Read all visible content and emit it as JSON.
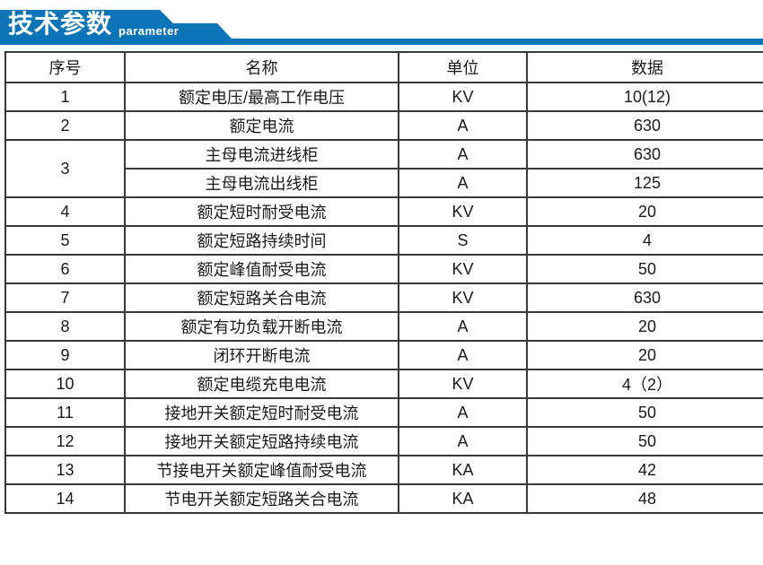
{
  "colors": {
    "banner-blue": "#0e74b8",
    "border-dark": "#3a3a3a"
  },
  "banner": {
    "title": "技术参数",
    "subtitle": "parameter"
  },
  "table": {
    "columns": [
      "序号",
      "名称",
      "单位",
      "数据"
    ],
    "rows": [
      {
        "no": "1",
        "no_rowspan": 1,
        "name": "额定电压/最高工作电压",
        "unit": "KV",
        "value": "10(12)"
      },
      {
        "no": "2",
        "no_rowspan": 1,
        "name": "额定电流",
        "unit": "A",
        "value": "630"
      },
      {
        "no": "3",
        "no_rowspan": 2,
        "name": "主母电流进线柜",
        "unit": "A",
        "value": "630"
      },
      {
        "name": "主母电流出线柜",
        "unit": "A",
        "value": "125"
      },
      {
        "no": "4",
        "no_rowspan": 1,
        "name": "额定短时耐受电流",
        "unit": "KV",
        "value": "20"
      },
      {
        "no": "5",
        "no_rowspan": 1,
        "name": "额定短路持续时间",
        "unit": "S",
        "value": "4"
      },
      {
        "no": "6",
        "no_rowspan": 1,
        "name": "额定峰值耐受电流",
        "unit": "KV",
        "value": "50"
      },
      {
        "no": "7",
        "no_rowspan": 1,
        "name": "额定短路关合电流",
        "unit": "KV",
        "value": "630"
      },
      {
        "no": "8",
        "no_rowspan": 1,
        "name": "额定有功负载开断电流",
        "unit": "A",
        "value": "20"
      },
      {
        "no": "9",
        "no_rowspan": 1,
        "name": "闭环开断电流",
        "unit": "A",
        "value": "20"
      },
      {
        "no": "10",
        "no_rowspan": 1,
        "name": "额定电缆充电电流",
        "unit": "KV",
        "value": "4（2）"
      },
      {
        "no": "11",
        "no_rowspan": 1,
        "name": "接地开关额定短时耐受电流",
        "unit": "A",
        "value": "50"
      },
      {
        "no": "12",
        "no_rowspan": 1,
        "name": "接地开关额定短路持续电流",
        "unit": "A",
        "value": "50"
      },
      {
        "no": "13",
        "no_rowspan": 1,
        "name": "节接电开关额定峰值耐受电流",
        "unit": "KA",
        "value": "42"
      },
      {
        "no": "14",
        "no_rowspan": 1,
        "name": "节电开关额定短路关合电流",
        "unit": "KA",
        "value": "48"
      }
    ]
  }
}
